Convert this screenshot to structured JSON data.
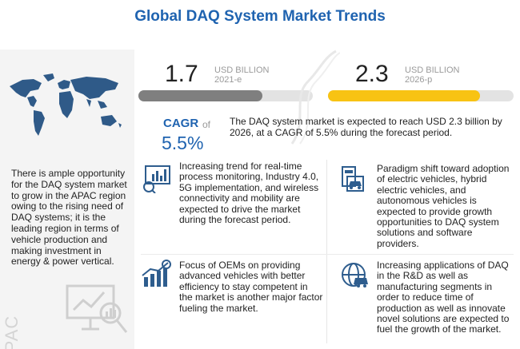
{
  "title": "Global DAQ System Market Trends",
  "colors": {
    "title_blue": "#1f63b0",
    "bar_grey": "#7f7f7f",
    "bar_yellow": "#f8c313",
    "map_blue": "#2f5a88",
    "icon_blue": "#2e5d8e"
  },
  "market": {
    "value_2021": "1.7",
    "unit_2021": "USD BILLION",
    "year_2021": "2021-e",
    "value_2026": "2.3",
    "unit_2026": "USD BILLION",
    "year_2026": "2026-p"
  },
  "cagr": {
    "label": "CAGR",
    "of": "of",
    "value": "5.5%",
    "description": "The DAQ system market is expected to reach USD 2.3 billion by 2026, at a CAGR of 5.5% during the forecast period."
  },
  "region": {
    "label": "APAC",
    "text": "There is ample opportunity for the DAQ system market to grow in the APAC region owing to the rising need of DAQ systems; it is the leading region in terms of vehicle production and making investment in energy & power vertical."
  },
  "points": [
    {
      "icon": "monitoring-dashboard-icon",
      "text": "Increasing trend for real-time process monitoring, Industry 4.0, 5G implementation, and wireless connectivity and mobility are expected to drive the market during the forecast period."
    },
    {
      "icon": "electric-vehicle-icon",
      "text": "Paradigm shift toward adoption of electric vehicles, hybrid electric vehicles, and autonomous vehicles is expected to provide growth opportunities to DAQ system solutions and software providers."
    },
    {
      "icon": "growth-chart-icon",
      "text": "Focus of OEMs on providing advanced vehicles with better efficiency to stay competent in the market is another major factor fueling the market."
    },
    {
      "icon": "research-globe-icon",
      "text": "Increasing applications of DAQ in the R&D as well as manufacturing segments in order to reduce time of production as well as innovate novel solutions are expected to fuel the growth of the market."
    }
  ]
}
